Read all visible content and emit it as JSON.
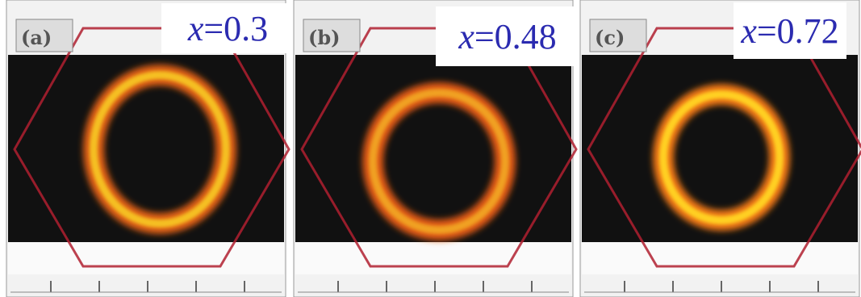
{
  "panels": [
    {
      "label": "(a)",
      "variable": "x",
      "value": "=0.3"
    },
    {
      "label": "(b)",
      "variable": "x",
      "value": "=0.48"
    },
    {
      "label": "(c)",
      "variable": "x",
      "value": "=0.72"
    }
  ]
}
